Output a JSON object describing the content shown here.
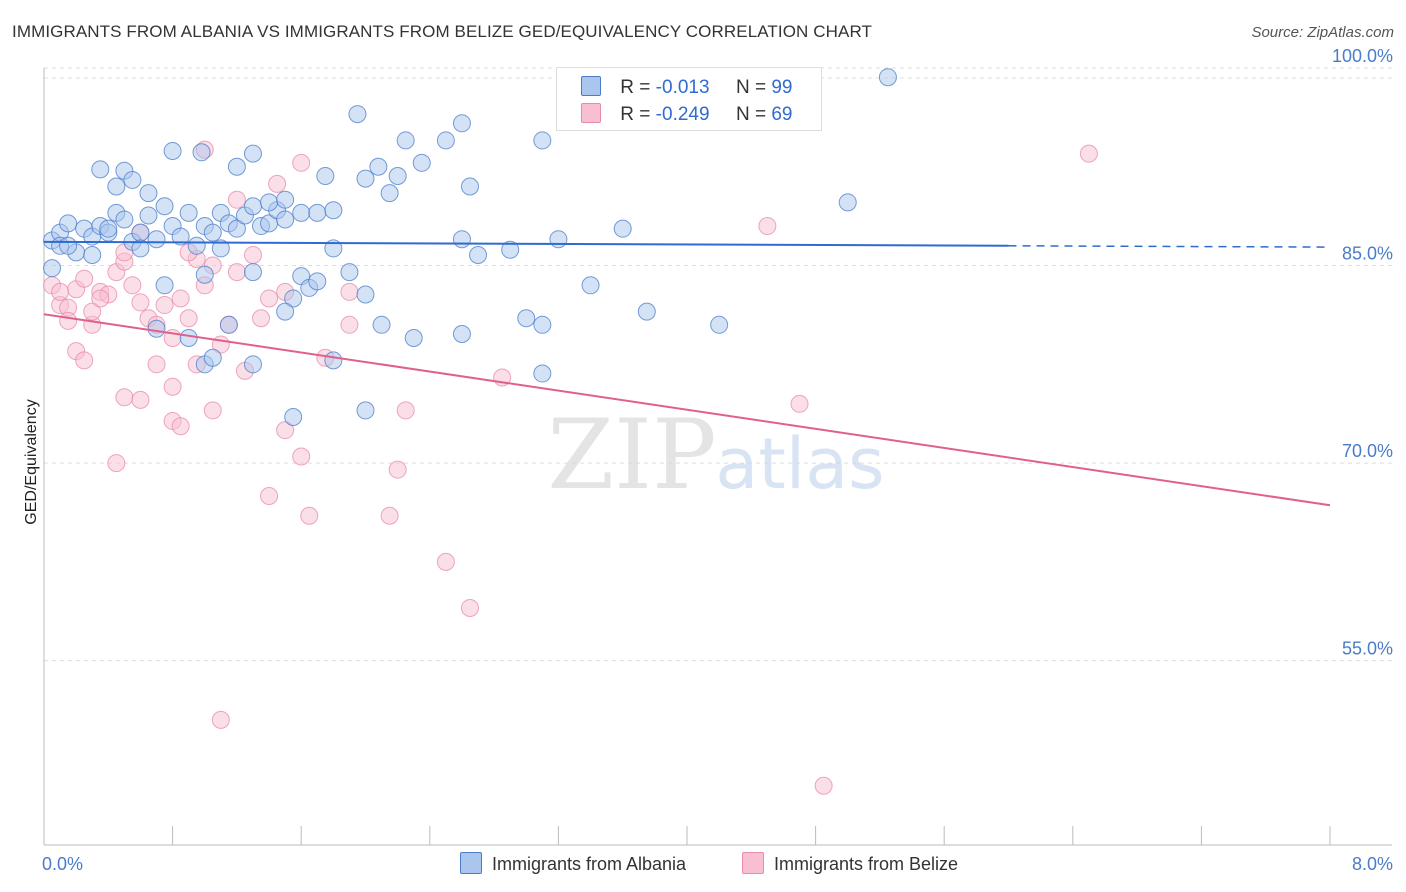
{
  "chart_data": {
    "type": "scatter",
    "title": "IMMIGRANTS FROM ALBANIA VS IMMIGRANTS FROM BELIZE GED/EQUIVALENCY CORRELATION CHART",
    "source": "Source: ZipAtlas.com",
    "ylabel": "GED/Equivalency",
    "xlim": [
      0,
      8
    ],
    "ylim": [
      41,
      100
    ],
    "x_tick_labels": [
      "0.0%",
      "8.0%"
    ],
    "y_ticks": [
      100,
      85,
      70,
      55
    ],
    "y_tick_labels": [
      "100.0%",
      "85.0%",
      "70.0%",
      "55.0%"
    ],
    "watermark": [
      "ZIP",
      "atlas"
    ],
    "colors": {
      "albania_fill": "#aac6ee",
      "albania_stroke": "#4a7cc9",
      "albania_line": "#2f6bd0",
      "belize_fill": "#f7bfd1",
      "belize_stroke": "#e88aa8",
      "belize_line": "#e0608a",
      "tick_text": "#4a7cc9",
      "grid": "#dddddd"
    },
    "legend": [
      {
        "r_label": "R =",
        "r_value": "-0.013",
        "n_label": "N =",
        "n_value": "99"
      },
      {
        "r_label": "R =",
        "r_value": "-0.249",
        "n_label": "N =",
        "n_value": "69"
      }
    ],
    "series": [
      {
        "name": "Immigrants from Albania",
        "trend": {
          "x0": 0,
          "y0": 86.8,
          "x1": 6.0,
          "y1": 86.5,
          "dash_x1": 8.0,
          "dash_y1": 86.4
        },
        "points": [
          [
            0.05,
            86.9
          ],
          [
            0.1,
            87.5
          ],
          [
            0.15,
            88.2
          ],
          [
            0.2,
            86.0
          ],
          [
            0.1,
            86.5
          ],
          [
            0.25,
            87.8
          ],
          [
            0.3,
            87.2
          ],
          [
            0.35,
            88.0
          ],
          [
            0.4,
            87.5
          ],
          [
            0.45,
            89.0
          ],
          [
            0.5,
            88.5
          ],
          [
            0.55,
            86.8
          ],
          [
            0.6,
            87.5
          ],
          [
            0.65,
            88.8
          ],
          [
            0.7,
            87.0
          ],
          [
            0.75,
            89.5
          ],
          [
            0.8,
            88.0
          ],
          [
            0.85,
            87.2
          ],
          [
            0.9,
            89.0
          ],
          [
            0.95,
            86.5
          ],
          [
            1.0,
            88.0
          ],
          [
            1.05,
            87.5
          ],
          [
            1.1,
            89.0
          ],
          [
            1.15,
            88.2
          ],
          [
            1.2,
            87.8
          ],
          [
            1.25,
            88.8
          ],
          [
            1.3,
            89.5
          ],
          [
            1.35,
            88.0
          ],
          [
            1.4,
            88.2
          ],
          [
            1.45,
            89.2
          ],
          [
            1.5,
            88.5
          ],
          [
            1.6,
            89.0
          ],
          [
            1.7,
            89.0
          ],
          [
            1.8,
            89.2
          ],
          [
            0.35,
            92.3
          ],
          [
            0.45,
            91.0
          ],
          [
            0.5,
            92.2
          ],
          [
            0.55,
            91.5
          ],
          [
            0.65,
            90.5
          ],
          [
            0.8,
            93.7
          ],
          [
            0.98,
            93.6
          ],
          [
            1.2,
            92.5
          ],
          [
            1.3,
            93.5
          ],
          [
            1.4,
            89.8
          ],
          [
            1.5,
            90.0
          ],
          [
            1.75,
            91.8
          ],
          [
            2.0,
            91.6
          ],
          [
            2.08,
            92.5
          ],
          [
            2.15,
            90.5
          ],
          [
            2.2,
            91.8
          ],
          [
            2.25,
            94.5
          ],
          [
            2.35,
            92.8
          ],
          [
            2.5,
            94.5
          ],
          [
            1.95,
            96.5
          ],
          [
            2.6,
            95.8
          ],
          [
            2.65,
            91.0
          ],
          [
            3.1,
            94.5
          ],
          [
            0.15,
            86.5
          ],
          [
            0.3,
            85.8
          ],
          [
            0.4,
            87.8
          ],
          [
            0.6,
            86.3
          ],
          [
            0.75,
            83.5
          ],
          [
            1.0,
            84.3
          ],
          [
            1.1,
            86.3
          ],
          [
            1.3,
            84.5
          ],
          [
            1.55,
            82.5
          ],
          [
            1.6,
            84.2
          ],
          [
            1.65,
            83.3
          ],
          [
            1.7,
            83.8
          ],
          [
            1.8,
            86.3
          ],
          [
            1.9,
            84.5
          ],
          [
            2.0,
            82.8
          ],
          [
            2.1,
            80.5
          ],
          [
            2.3,
            79.5
          ],
          [
            2.6,
            79.8
          ],
          [
            2.7,
            85.8
          ],
          [
            2.9,
            86.2
          ],
          [
            3.0,
            81.0
          ],
          [
            3.1,
            80.5
          ],
          [
            3.4,
            83.5
          ],
          [
            3.75,
            81.5
          ],
          [
            4.2,
            80.5
          ],
          [
            5.0,
            89.8
          ],
          [
            5.25,
            99.3
          ],
          [
            3.2,
            87.0
          ],
          [
            3.6,
            87.8
          ],
          [
            2.6,
            87.0
          ],
          [
            0.7,
            80.2
          ],
          [
            0.9,
            79.5
          ],
          [
            1.0,
            77.5
          ],
          [
            1.05,
            78.0
          ],
          [
            1.15,
            80.5
          ],
          [
            1.3,
            77.5
          ],
          [
            1.5,
            81.5
          ],
          [
            1.8,
            77.8
          ],
          [
            2.0,
            74.0
          ],
          [
            1.55,
            73.5
          ],
          [
            0.05,
            84.8
          ],
          [
            3.1,
            76.8
          ]
        ]
      },
      {
        "name": "Immigrants from Belize",
        "trend": {
          "x0": 0,
          "y0": 81.3,
          "x1": 8.0,
          "y1": 66.8
        },
        "points": [
          [
            0.05,
            83.5
          ],
          [
            0.1,
            82.0
          ],
          [
            0.15,
            81.8
          ],
          [
            0.2,
            83.2
          ],
          [
            0.25,
            84.0
          ],
          [
            0.3,
            80.5
          ],
          [
            0.35,
            83.0
          ],
          [
            0.4,
            82.8
          ],
          [
            0.45,
            84.5
          ],
          [
            0.5,
            85.3
          ],
          [
            0.55,
            83.5
          ],
          [
            0.6,
            82.2
          ],
          [
            0.65,
            81.0
          ],
          [
            0.7,
            80.5
          ],
          [
            0.75,
            82.0
          ],
          [
            0.8,
            79.5
          ],
          [
            0.85,
            82.5
          ],
          [
            0.9,
            81.0
          ],
          [
            0.95,
            85.5
          ],
          [
            1.0,
            83.5
          ],
          [
            1.05,
            85.0
          ],
          [
            1.1,
            79.0
          ],
          [
            1.15,
            80.5
          ],
          [
            1.2,
            84.5
          ],
          [
            1.3,
            85.8
          ],
          [
            1.35,
            81.0
          ],
          [
            1.4,
            82.5
          ],
          [
            1.5,
            83.0
          ],
          [
            0.5,
            86.0
          ],
          [
            0.6,
            87.5
          ],
          [
            0.9,
            86.0
          ],
          [
            1.2,
            90.0
          ],
          [
            1.0,
            93.8
          ],
          [
            1.45,
            91.2
          ],
          [
            1.6,
            92.8
          ],
          [
            0.8,
            75.8
          ],
          [
            0.95,
            77.5
          ],
          [
            1.05,
            74.0
          ],
          [
            1.25,
            77.0
          ],
          [
            0.5,
            75.0
          ],
          [
            0.45,
            70.0
          ],
          [
            0.8,
            73.2
          ],
          [
            0.85,
            72.8
          ],
          [
            0.6,
            74.8
          ],
          [
            0.7,
            77.5
          ],
          [
            1.5,
            72.5
          ],
          [
            1.6,
            70.5
          ],
          [
            1.65,
            66.0
          ],
          [
            1.4,
            67.5
          ],
          [
            1.75,
            78.0
          ],
          [
            1.9,
            80.5
          ],
          [
            2.15,
            66.0
          ],
          [
            2.2,
            69.5
          ],
          [
            2.25,
            74.0
          ],
          [
            2.5,
            62.5
          ],
          [
            2.65,
            59.0
          ],
          [
            1.1,
            50.5
          ],
          [
            2.85,
            76.5
          ],
          [
            4.5,
            88.0
          ],
          [
            4.7,
            74.5
          ],
          [
            4.85,
            45.5
          ],
          [
            6.5,
            93.5
          ],
          [
            0.2,
            78.5
          ],
          [
            0.25,
            77.8
          ],
          [
            0.15,
            80.8
          ],
          [
            0.1,
            83.0
          ],
          [
            0.3,
            81.5
          ],
          [
            0.35,
            82.5
          ],
          [
            1.9,
            83.0
          ]
        ]
      }
    ]
  }
}
